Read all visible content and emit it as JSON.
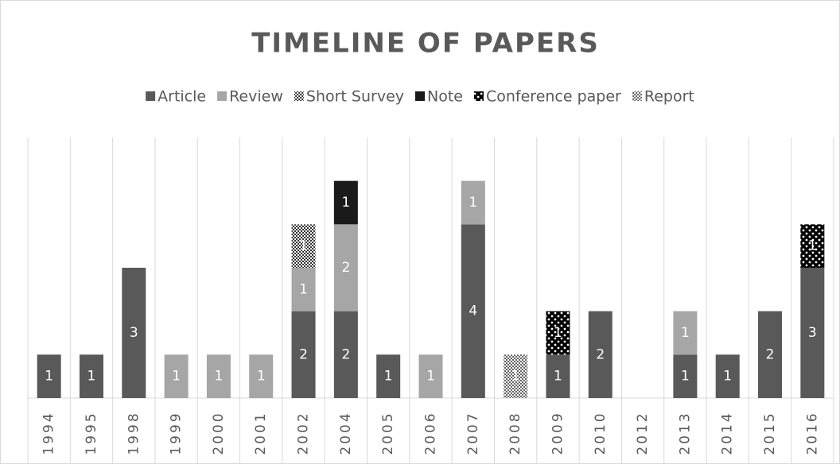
{
  "chart_data": {
    "type": "stacked-bar",
    "title": "TIMELINE OF PAPERS",
    "categories": [
      "1994",
      "1995",
      "1998",
      "1999",
      "2000",
      "2001",
      "2002",
      "2004",
      "2005",
      "2006",
      "2007",
      "2008",
      "2009",
      "2010",
      "2012",
      "2013",
      "2014",
      "2015",
      "2016"
    ],
    "ylim": [
      0,
      6
    ],
    "series": [
      {
        "name": "Article",
        "color": "#595959",
        "values": [
          1,
          1,
          3,
          null,
          null,
          null,
          2,
          2,
          1,
          null,
          4,
          null,
          1,
          2,
          null,
          1,
          1,
          2,
          3
        ]
      },
      {
        "name": "Review",
        "color": "#a6a6a6",
        "values": [
          null,
          null,
          null,
          1,
          1,
          1,
          1,
          2,
          null,
          1,
          1,
          null,
          null,
          null,
          null,
          1,
          null,
          null,
          null
        ]
      },
      {
        "name": "Short Survey",
        "color": "#404040",
        "pattern": "checker",
        "values": [
          null,
          null,
          null,
          null,
          null,
          null,
          1,
          null,
          null,
          null,
          null,
          null,
          null,
          null,
          null,
          null,
          null,
          null,
          null
        ]
      },
      {
        "name": "Note",
        "color": "#1a1a1a",
        "values": [
          null,
          null,
          null,
          null,
          null,
          null,
          null,
          1,
          null,
          null,
          null,
          null,
          null,
          null,
          null,
          null,
          null,
          null,
          null
        ]
      },
      {
        "name": "Conference paper",
        "color": "#000000",
        "pattern": "dots-light",
        "values": [
          null,
          null,
          null,
          null,
          null,
          null,
          null,
          null,
          null,
          null,
          null,
          null,
          1,
          null,
          null,
          null,
          null,
          null,
          1
        ]
      },
      {
        "name": "Report",
        "color": "#404040",
        "pattern": "dots-dark",
        "values": [
          null,
          null,
          null,
          null,
          null,
          null,
          null,
          null,
          null,
          null,
          null,
          1,
          null,
          null,
          null,
          null,
          null,
          null,
          null
        ]
      }
    ]
  }
}
